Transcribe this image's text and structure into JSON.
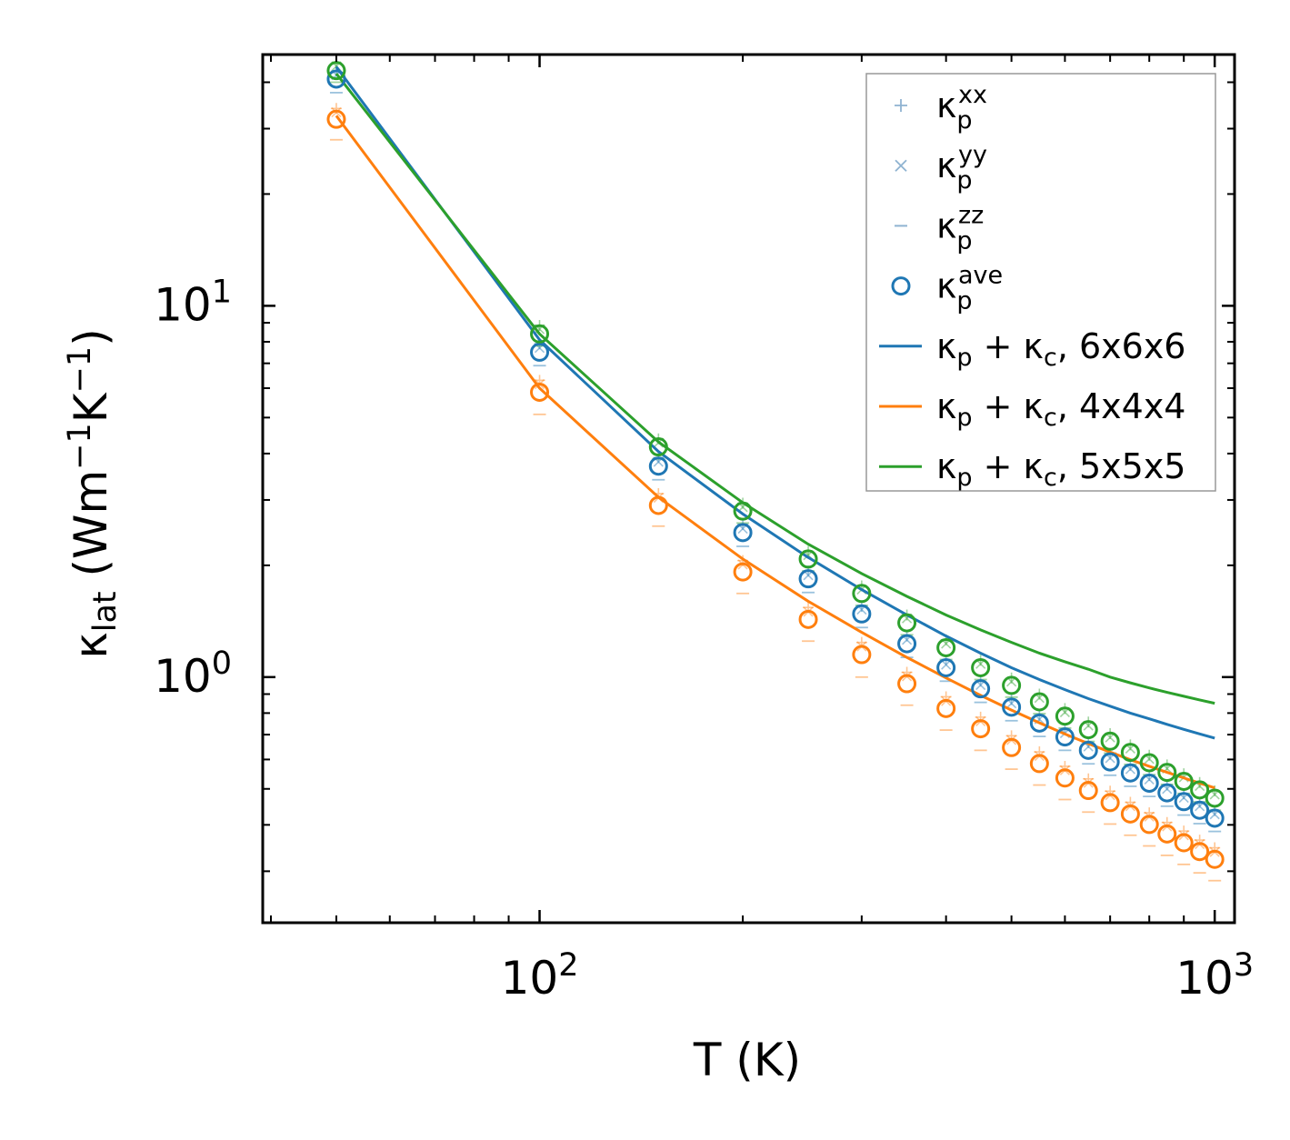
{
  "chart_data": {
    "type": "scatter",
    "title": "",
    "xlabel": "T (K)",
    "ylabel_main": "κ",
    "ylabel_sub": "lat",
    "ylabel_units": {
      "open": " (Wm",
      "exp1": "−1",
      "mid": "K",
      "exp2": "−1",
      "close": ")"
    },
    "xscale": "log",
    "yscale": "log",
    "xlim": [
      38.9,
      1070
    ],
    "ylim": [
      0.218,
      47.5
    ],
    "x_ticks": [
      {
        "value": 100,
        "base": "10",
        "exp": "2"
      },
      {
        "value": 1000,
        "base": "10",
        "exp": "3"
      }
    ],
    "y_ticks": [
      {
        "value": 1,
        "base": "10",
        "exp": "0"
      },
      {
        "value": 10,
        "base": "10",
        "exp": "1"
      }
    ],
    "legend_position": "top-right",
    "legend": [
      {
        "kind": "plus",
        "sym": "κ",
        "sub": "p",
        "sup": "xx",
        "text": ""
      },
      {
        "kind": "cross",
        "sym": "κ",
        "sub": "p",
        "sup": "yy",
        "text": ""
      },
      {
        "kind": "dash",
        "sym": "κ",
        "sub": "p",
        "sup": "zz",
        "text": ""
      },
      {
        "kind": "circle",
        "sym": "κ",
        "sub": "p",
        "sup": "ave",
        "text": ""
      },
      {
        "kind": "line",
        "color": "#1f77b4",
        "sym": "κ",
        "sub": "p",
        "sup": "",
        "text": " + κ",
        "sub2": "c",
        "tail": ", 6x6x6"
      },
      {
        "kind": "line",
        "color": "#ff7f0e",
        "sym": "κ",
        "sub": "p",
        "sup": "",
        "text": " + κ",
        "sub2": "c",
        "tail": ", 4x4x4"
      },
      {
        "kind": "line",
        "color": "#2ca02c",
        "sym": "κ",
        "sub": "p",
        "sup": "",
        "text": " + κ",
        "sub2": "c",
        "tail": ", 5x5x5"
      }
    ],
    "x": [
      50,
      100,
      150,
      200,
      250,
      300,
      350,
      400,
      450,
      500,
      550,
      600,
      650,
      700,
      750,
      800,
      850,
      900,
      950,
      1000
    ],
    "series": [
      {
        "name": "6x6x6",
        "color": "#1f77b4",
        "ave": [
          40.8,
          7.5,
          3.7,
          2.45,
          1.84,
          1.48,
          1.23,
          1.06,
          0.93,
          0.83,
          0.752,
          0.69,
          0.635,
          0.591,
          0.552,
          0.518,
          0.488,
          0.462,
          0.438,
          0.417
        ],
        "xx": [
          42.8,
          7.9,
          3.9,
          2.58,
          1.93,
          1.55,
          1.29,
          1.11,
          0.975,
          0.87,
          0.788,
          0.723,
          0.666,
          0.62,
          0.579,
          0.543,
          0.512,
          0.485,
          0.46,
          0.437
        ],
        "yy": [
          41.8,
          7.7,
          3.8,
          2.51,
          1.88,
          1.52,
          1.26,
          1.08,
          0.952,
          0.85,
          0.77,
          0.706,
          0.65,
          0.605,
          0.565,
          0.53,
          0.5,
          0.473,
          0.449,
          0.427
        ],
        "zz": [
          37.5,
          6.9,
          3.4,
          2.25,
          1.69,
          1.36,
          1.13,
          0.975,
          0.855,
          0.763,
          0.692,
          0.635,
          0.584,
          0.544,
          0.508,
          0.477,
          0.449,
          0.425,
          0.403,
          0.384
        ],
        "total": [
          44.0,
          8.1,
          4.05,
          2.75,
          2.1,
          1.72,
          1.47,
          1.29,
          1.16,
          1.06,
          0.985,
          0.925,
          0.875,
          0.835,
          0.8,
          0.772,
          0.746,
          0.723,
          0.703,
          0.685
        ]
      },
      {
        "name": "4x4x4",
        "color": "#ff7f0e",
        "ave": [
          31.8,
          5.85,
          2.9,
          1.92,
          1.43,
          1.15,
          0.96,
          0.823,
          0.726,
          0.646,
          0.585,
          0.535,
          0.495,
          0.459,
          0.428,
          0.401,
          0.378,
          0.358,
          0.339,
          0.323
        ],
        "xx": [
          34.0,
          6.3,
          3.12,
          2.06,
          1.54,
          1.24,
          1.03,
          0.885,
          0.78,
          0.695,
          0.629,
          0.575,
          0.532,
          0.493,
          0.46,
          0.431,
          0.406,
          0.385,
          0.364,
          0.347
        ],
        "yy": [
          33.2,
          6.15,
          3.04,
          2.01,
          1.5,
          1.21,
          1.005,
          0.862,
          0.76,
          0.677,
          0.613,
          0.561,
          0.519,
          0.481,
          0.449,
          0.421,
          0.396,
          0.375,
          0.355,
          0.338
        ],
        "zz": [
          28.0,
          5.1,
          2.55,
          1.68,
          1.25,
          1.0,
          0.84,
          0.72,
          0.635,
          0.565,
          0.512,
          0.468,
          0.433,
          0.402,
          0.375,
          0.351,
          0.331,
          0.313,
          0.297,
          0.283
        ],
        "total": [
          32.5,
          6.0,
          3.05,
          2.08,
          1.6,
          1.32,
          1.13,
          0.995,
          0.893,
          0.815,
          0.753,
          0.703,
          0.662,
          0.628,
          0.599,
          0.575,
          0.554,
          0.535,
          0.518,
          0.503
        ]
      },
      {
        "name": "5x5x5",
        "color": "#2ca02c",
        "ave": [
          43.0,
          8.4,
          4.17,
          2.8,
          2.08,
          1.68,
          1.4,
          1.2,
          1.06,
          0.95,
          0.858,
          0.785,
          0.722,
          0.672,
          0.627,
          0.588,
          0.554,
          0.524,
          0.497,
          0.472
        ],
        "xx": [
          45.0,
          8.85,
          4.38,
          2.94,
          2.18,
          1.76,
          1.47,
          1.26,
          1.11,
          0.995,
          0.9,
          0.823,
          0.757,
          0.704,
          0.657,
          0.616,
          0.58,
          0.549,
          0.52,
          0.494
        ],
        "yy": [
          44.2,
          8.65,
          4.28,
          2.87,
          2.13,
          1.72,
          1.44,
          1.23,
          1.085,
          0.972,
          0.879,
          0.804,
          0.74,
          0.688,
          0.642,
          0.602,
          0.567,
          0.537,
          0.509,
          0.483
        ],
        "zz": [
          40.0,
          7.8,
          3.87,
          2.6,
          1.93,
          1.56,
          1.3,
          1.115,
          0.985,
          0.883,
          0.797,
          0.729,
          0.671,
          0.624,
          0.582,
          0.546,
          0.514,
          0.486,
          0.461,
          0.438
        ],
        "total": [
          42.2,
          8.4,
          4.3,
          2.95,
          2.28,
          1.9,
          1.65,
          1.47,
          1.34,
          1.24,
          1.16,
          1.1,
          1.05,
          1.0,
          0.965,
          0.935,
          0.91,
          0.888,
          0.868,
          0.85
        ]
      }
    ]
  }
}
